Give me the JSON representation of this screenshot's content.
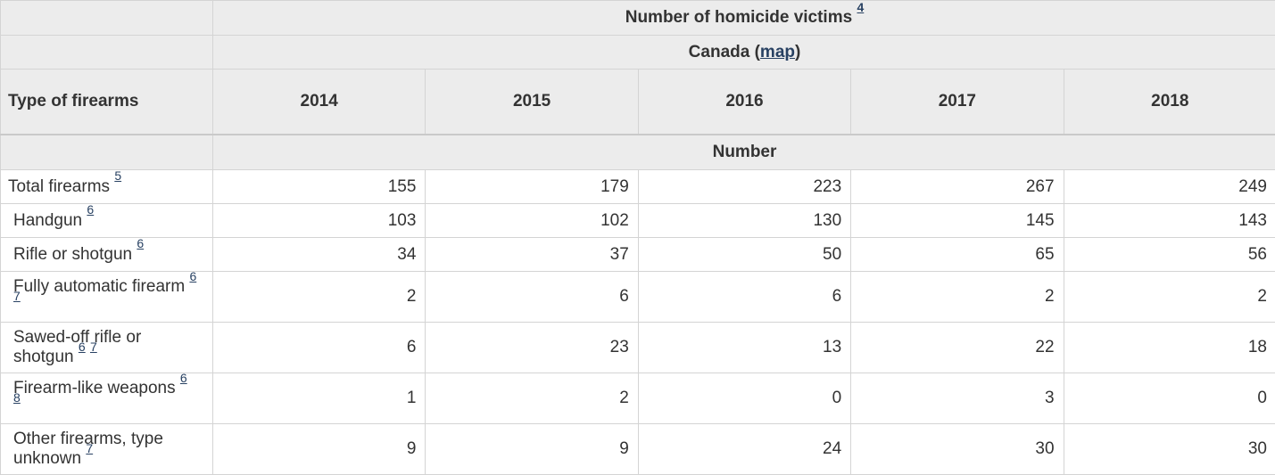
{
  "chart_data": {
    "type": "table",
    "title": "Number of homicide victims",
    "region": "Canada",
    "unit": "Number",
    "columns": [
      "Type of firearms",
      "2014",
      "2015",
      "2016",
      "2017",
      "2018"
    ],
    "rows": [
      [
        "Total firearms",
        155,
        179,
        223,
        267,
        249
      ],
      [
        "Handgun",
        103,
        102,
        130,
        145,
        143
      ],
      [
        "Rifle or shotgun",
        34,
        37,
        50,
        65,
        56
      ],
      [
        "Fully automatic firearm",
        2,
        6,
        6,
        2,
        2
      ],
      [
        "Sawed-off rifle or shotgun",
        6,
        23,
        13,
        22,
        18
      ],
      [
        "Firearm-like weapons",
        1,
        2,
        0,
        3,
        0
      ],
      [
        "Other firearms, type unknown",
        9,
        9,
        24,
        30,
        30
      ]
    ]
  },
  "table": {
    "title": "Number of homicide victims",
    "title_footnote": "4",
    "region_prefix": "Canada (",
    "region_link": "map",
    "region_suffix": ")",
    "stub_header": "Type of firearms",
    "years": [
      "2014",
      "2015",
      "2016",
      "2017",
      "2018"
    ],
    "unit_label": "Number",
    "rows": [
      {
        "label": "Total firearms",
        "footnotes": [
          "5"
        ],
        "values": [
          "155",
          "179",
          "223",
          "267",
          "249"
        ]
      },
      {
        "label": "Handgun",
        "footnotes": [
          "6"
        ],
        "values": [
          "103",
          "102",
          "130",
          "145",
          "143"
        ]
      },
      {
        "label": "Rifle or shotgun",
        "footnotes": [
          "6"
        ],
        "values": [
          "34",
          "37",
          "50",
          "65",
          "56"
        ]
      },
      {
        "label": "Fully automatic firearm",
        "footnotes": [
          "6",
          "7"
        ],
        "values": [
          "2",
          "6",
          "6",
          "2",
          "2"
        ]
      },
      {
        "label": "Sawed-off rifle or\nshotgun",
        "footnotes": [
          "6",
          "7"
        ],
        "values": [
          "6",
          "23",
          "13",
          "22",
          "18"
        ]
      },
      {
        "label": "Firearm-like weapons",
        "footnotes": [
          "6",
          "8"
        ],
        "values": [
          "1",
          "2",
          "0",
          "3",
          "0"
        ]
      },
      {
        "label": "Other firearms, type\nunknown",
        "footnotes": [
          "7"
        ],
        "values": [
          "9",
          "9",
          "24",
          "30",
          "30"
        ]
      }
    ],
    "colors": {
      "header_bg": "#ececec",
      "border": "#d4d4d4",
      "border_strong": "#c9c9c9",
      "link": "#284162",
      "text": "#333333"
    }
  }
}
